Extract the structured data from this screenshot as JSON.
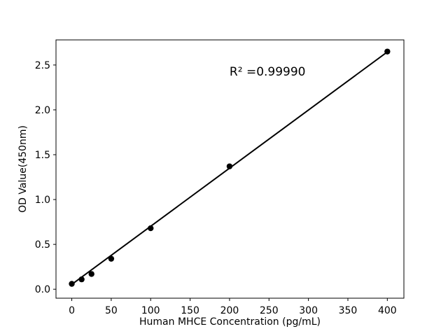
{
  "figure": {
    "background": "#ffffff",
    "text_color": "#000000"
  },
  "chart_data": {
    "type": "scatter",
    "title": "",
    "xlabel": "Human MHCE Concentration (pg/mL)",
    "ylabel": "OD Value(450nm)",
    "x": [
      0,
      12.5,
      25,
      50,
      100,
      200,
      400
    ],
    "y": [
      0.06,
      0.11,
      0.17,
      0.34,
      0.68,
      1.37,
      2.65
    ],
    "fit": {
      "slope": 0.00648,
      "intercept": 0.054,
      "x_start": 0,
      "x_end": 400
    },
    "annotation": {
      "text": "R² =0.99990",
      "x": 200,
      "y": 2.43
    },
    "xticks": {
      "values": [
        0,
        50,
        100,
        150,
        200,
        250,
        300,
        350,
        400
      ],
      "labels": [
        "0",
        "50",
        "100",
        "150",
        "200",
        "250",
        "300",
        "350",
        "400"
      ]
    },
    "yticks": {
      "values": [
        0.0,
        0.5,
        1.0,
        1.5,
        2.0,
        2.5
      ],
      "labels": [
        "0.0",
        "0.5",
        "1.0",
        "1.5",
        "2.0",
        "2.5"
      ]
    },
    "xlim": [
      -20,
      421
    ],
    "ylim": [
      -0.1,
      2.78
    ],
    "grid": false,
    "legend": null,
    "marker_color": "#000000",
    "line_color": "#000000",
    "axis_color": "#000000"
  }
}
